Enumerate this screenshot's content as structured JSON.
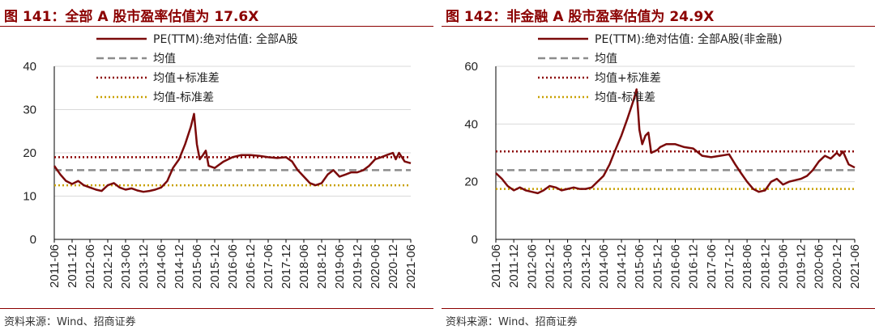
{
  "charts": [
    {
      "title": "图 141：全部 A 股市盈率估值为 17.6X",
      "source": "资料来源：Wind、招商证券"
    },
    {
      "title": "图 142：非金融 A 股市盈率估值为 24.9X",
      "source": "资料来源：Wind、招商证券"
    }
  ],
  "colors": {
    "series": "#7b0a0a",
    "mean": "#8c8c8c",
    "upper": "#8b0000",
    "lower": "#c8a000",
    "grid": "#d9d9d9"
  },
  "chart_data": [
    {
      "type": "line",
      "title": "图 141：全部 A 股市盈率估值为 17.6X",
      "ylim": [
        0,
        40
      ],
      "yticks": [
        "0",
        "10",
        "20",
        "30",
        "40"
      ],
      "x_ticklabels": [
        "2011-06",
        "2011-12",
        "2012-06",
        "2012-12",
        "2013-06",
        "2013-12",
        "2014-06",
        "2014-12",
        "2015-06",
        "2015-12",
        "2016-06",
        "2016-12",
        "2017-06",
        "2017-12",
        "2018-06",
        "2018-12",
        "2019-06",
        "2019-12",
        "2020-06",
        "2020-12",
        "2021-06"
      ],
      "legend": [
        "PE(TTM):绝对估值: 全部A股",
        "均值",
        "均值+标准差",
        "均值-标准差"
      ],
      "grid": "horizontal",
      "legend_position": "top",
      "series": [
        {
          "name": "PE(TTM):绝对估值: 全部A股",
          "x": [
            2011.5,
            2011.67,
            2011.83,
            2012.0,
            2012.17,
            2012.33,
            2012.5,
            2012.67,
            2012.83,
            2013.0,
            2013.17,
            2013.33,
            2013.5,
            2013.67,
            2013.83,
            2014.0,
            2014.17,
            2014.33,
            2014.5,
            2014.67,
            2014.83,
            2015.0,
            2015.17,
            2015.33,
            2015.42,
            2015.5,
            2015.58,
            2015.67,
            2015.75,
            2015.83,
            2016.0,
            2016.08,
            2016.25,
            2016.5,
            2016.75,
            2017.0,
            2017.25,
            2017.5,
            2017.75,
            2018.0,
            2018.17,
            2018.33,
            2018.5,
            2018.67,
            2018.83,
            2019.0,
            2019.17,
            2019.33,
            2019.5,
            2019.67,
            2019.83,
            2020.0,
            2020.17,
            2020.33,
            2020.5,
            2020.67,
            2020.83,
            2021.0,
            2021.08,
            2021.17,
            2021.33,
            2021.5
          ],
          "values": [
            17.0,
            15.0,
            13.5,
            12.8,
            13.5,
            12.5,
            12.0,
            11.5,
            11.2,
            12.5,
            13.0,
            12.0,
            11.5,
            11.8,
            11.3,
            11.0,
            11.2,
            11.5,
            12.0,
            13.5,
            16.5,
            18.5,
            22.0,
            26.0,
            29.0,
            22.0,
            18.5,
            19.5,
            20.5,
            17.0,
            16.5,
            17.0,
            18.0,
            19.0,
            19.5,
            19.5,
            19.3,
            19.0,
            18.8,
            19.0,
            18.0,
            16.0,
            14.5,
            13.0,
            12.5,
            13.0,
            15.0,
            16.0,
            14.5,
            15.0,
            15.5,
            15.5,
            16.0,
            17.0,
            18.5,
            19.0,
            19.5,
            20.0,
            18.5,
            20.0,
            18.0,
            17.6
          ]
        },
        {
          "name": "均值",
          "values": [
            16.0
          ]
        },
        {
          "name": "均值+标准差",
          "values": [
            19.0
          ]
        },
        {
          "name": "均值-标准差",
          "values": [
            12.5
          ]
        }
      ]
    },
    {
      "type": "line",
      "title": "图 142：非金融 A 股市盈率估值为 24.9X",
      "ylim": [
        0,
        60
      ],
      "yticks": [
        "0",
        "20",
        "40",
        "60"
      ],
      "x_ticklabels": [
        "2011-06",
        "2011-12",
        "2012-06",
        "2012-12",
        "2013-06",
        "2013-12",
        "2014-06",
        "2014-12",
        "2015-06",
        "2015-12",
        "2016-06",
        "2016-12",
        "2017-06",
        "2017-12",
        "2018-06",
        "2018-12",
        "2019-06",
        "2019-12",
        "2020-06",
        "2020-12",
        "2021-06"
      ],
      "legend": [
        "PE(TTM):绝对估值: 全部A股(非金融)",
        "均值",
        "均值+标准差",
        "均值-标准差"
      ],
      "grid": "horizontal",
      "legend_position": "top",
      "series": [
        {
          "name": "PE(TTM):绝对估值: 全部A股(非金融)",
          "x": [
            2011.5,
            2011.67,
            2011.83,
            2012.0,
            2012.17,
            2012.33,
            2012.5,
            2012.67,
            2012.83,
            2013.0,
            2013.17,
            2013.33,
            2013.5,
            2013.67,
            2013.83,
            2014.0,
            2014.17,
            2014.33,
            2014.5,
            2014.67,
            2014.83,
            2015.0,
            2015.17,
            2015.33,
            2015.42,
            2015.5,
            2015.58,
            2015.67,
            2015.75,
            2015.83,
            2016.0,
            2016.08,
            2016.25,
            2016.5,
            2016.75,
            2017.0,
            2017.25,
            2017.5,
            2017.75,
            2018.0,
            2018.17,
            2018.33,
            2018.5,
            2018.67,
            2018.83,
            2019.0,
            2019.17,
            2019.33,
            2019.5,
            2019.67,
            2019.83,
            2020.0,
            2020.17,
            2020.33,
            2020.5,
            2020.67,
            2020.83,
            2021.0,
            2021.08,
            2021.17,
            2021.33,
            2021.5
          ],
          "values": [
            23.0,
            21.0,
            18.5,
            17.0,
            18.0,
            17.0,
            16.5,
            16.0,
            17.0,
            18.5,
            18.0,
            17.0,
            17.5,
            18.0,
            17.5,
            17.5,
            18.0,
            20.0,
            22.0,
            26.0,
            31.0,
            36.0,
            42.0,
            48.0,
            52.0,
            38.0,
            33.0,
            36.0,
            37.0,
            30.0,
            31.0,
            32.0,
            33.0,
            33.0,
            32.0,
            31.5,
            29.0,
            28.5,
            29.0,
            29.5,
            26.0,
            23.0,
            20.0,
            17.5,
            16.5,
            17.0,
            20.0,
            21.0,
            19.0,
            20.0,
            20.5,
            21.0,
            22.0,
            24.0,
            27.0,
            29.0,
            28.0,
            30.0,
            29.0,
            30.5,
            26.0,
            24.9
          ]
        },
        {
          "name": "均值",
          "values": [
            24.0
          ]
        },
        {
          "name": "均值+标准差",
          "values": [
            30.5
          ]
        },
        {
          "name": "均值-标准差",
          "values": [
            17.5
          ]
        }
      ]
    }
  ]
}
